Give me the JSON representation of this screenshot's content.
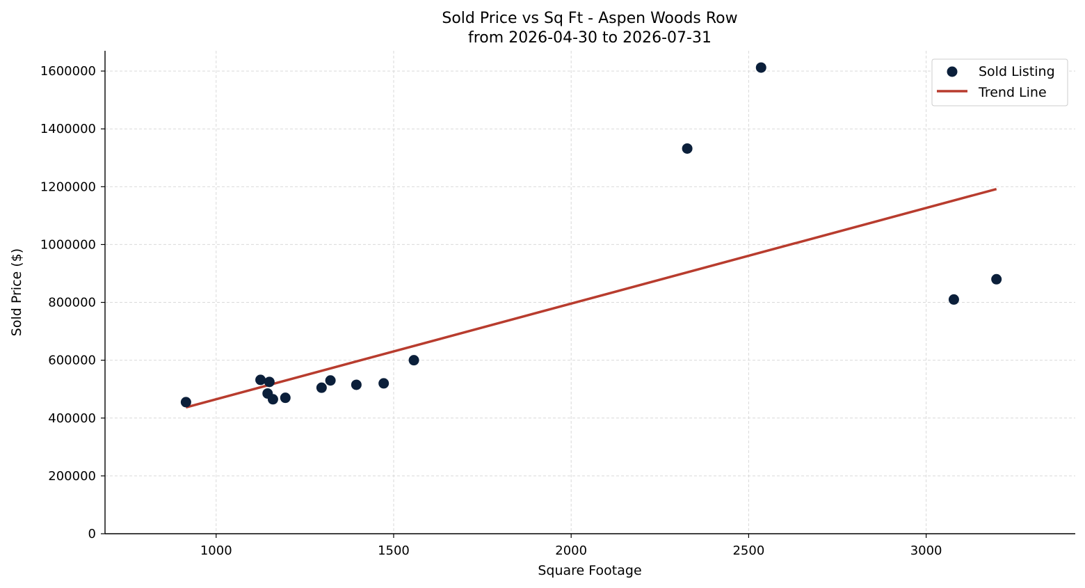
{
  "chart_data": {
    "type": "scatter",
    "title": "Sold Price vs Sq Ft - Aspen Woods Row",
    "subtitle": "from 2026-04-30 to 2026-07-31",
    "xlabel": "Square Footage",
    "ylabel": "Sold Price ($)",
    "xlim": [
      687,
      3420
    ],
    "ylim": [
      0,
      1670000
    ],
    "xticks": [
      1000,
      1500,
      2000,
      2500,
      3000
    ],
    "yticks": [
      0,
      200000,
      400000,
      600000,
      800000,
      1000000,
      1200000,
      1400000,
      1600000
    ],
    "grid": true,
    "legend_position": "top-right",
    "series": [
      {
        "name": "Sold Listing",
        "kind": "scatter",
        "color": "#0b1f3a",
        "points": [
          {
            "x": 915,
            "y": 455000
          },
          {
            "x": 1125,
            "y": 532000
          },
          {
            "x": 1150,
            "y": 525000
          },
          {
            "x": 1145,
            "y": 485000
          },
          {
            "x": 1160,
            "y": 465000
          },
          {
            "x": 1195,
            "y": 470000
          },
          {
            "x": 1297,
            "y": 505000
          },
          {
            "x": 1322,
            "y": 530000
          },
          {
            "x": 1395,
            "y": 515000
          },
          {
            "x": 1472,
            "y": 520000
          },
          {
            "x": 1557,
            "y": 600000
          },
          {
            "x": 2327,
            "y": 1332000
          },
          {
            "x": 2535,
            "y": 1612000
          },
          {
            "x": 3078,
            "y": 810000
          },
          {
            "x": 3198,
            "y": 880000
          }
        ]
      },
      {
        "name": "Trend Line",
        "kind": "line",
        "color": "#b83c2e",
        "points": [
          {
            "x": 915,
            "y": 437000
          },
          {
            "x": 3198,
            "y": 1192000
          }
        ]
      }
    ]
  }
}
